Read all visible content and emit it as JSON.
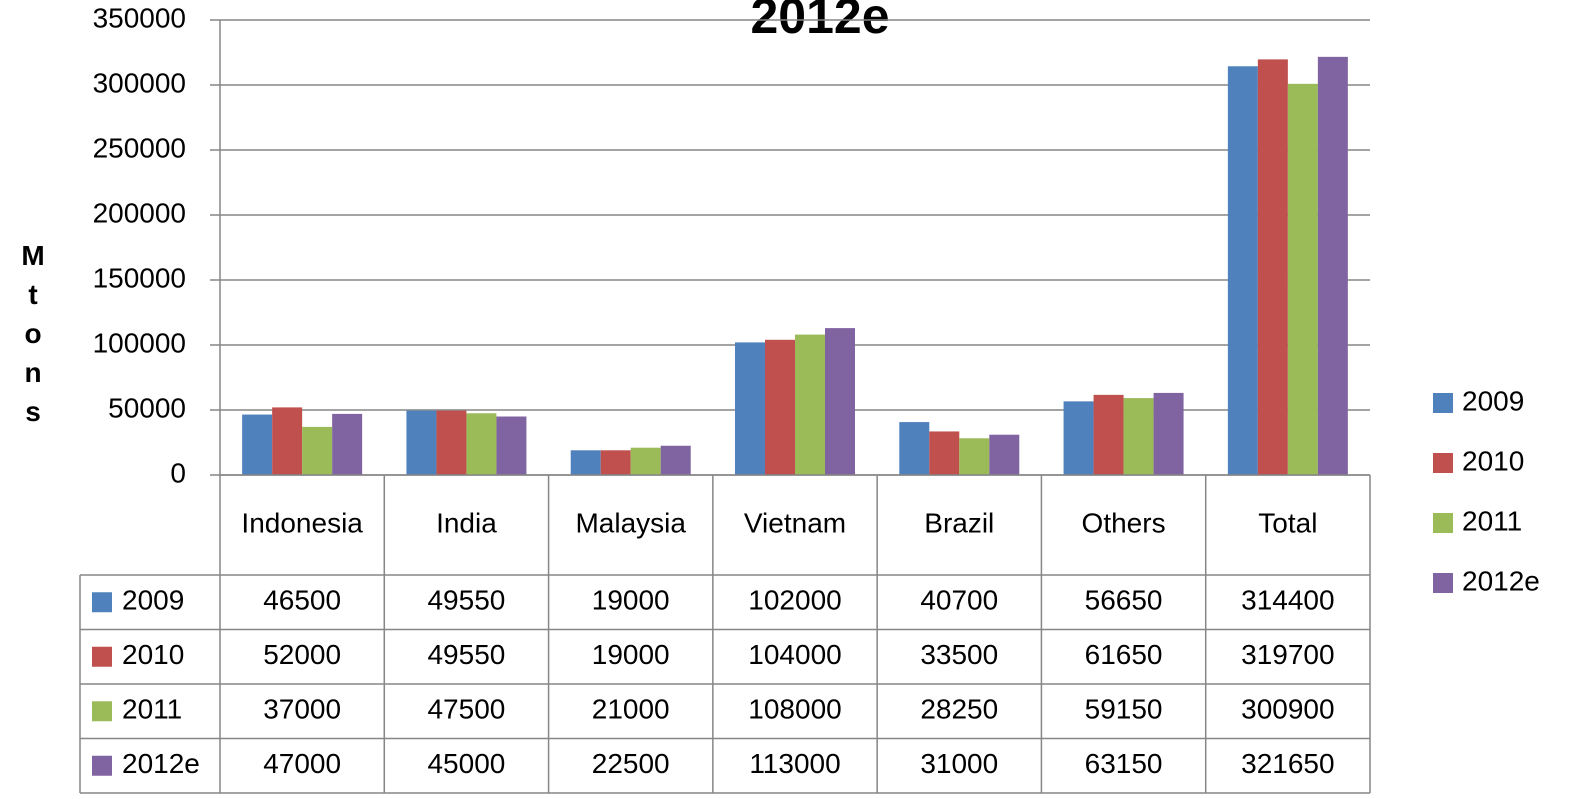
{
  "chart_data": {
    "type": "bar",
    "title": "2012e",
    "y_label": "Mtons",
    "categories": [
      "Indonesia",
      "India",
      "Malaysia",
      "Vietnam",
      "Brazil",
      "Others",
      "Total"
    ],
    "series": [
      {
        "name": "2009",
        "color": "#4f81bd",
        "values": [
          46500,
          49550,
          19000,
          102000,
          40700,
          56650,
          314400
        ]
      },
      {
        "name": "2010",
        "color": "#c0504d",
        "values": [
          52000,
          49550,
          19000,
          104000,
          33500,
          61650,
          319700
        ]
      },
      {
        "name": "2011",
        "color": "#9bbb59",
        "values": [
          37000,
          47500,
          21000,
          108000,
          28250,
          59150,
          300900
        ]
      },
      {
        "name": "2012e",
        "color": "#8064a2",
        "values": [
          47000,
          45000,
          22500,
          113000,
          31000,
          63150,
          321650
        ]
      }
    ],
    "ylim": [
      0,
      350000
    ],
    "yticks": [
      0,
      50000,
      100000,
      150000,
      200000,
      250000,
      300000,
      350000
    ],
    "grid": true,
    "legend": "right",
    "data_table": true
  }
}
